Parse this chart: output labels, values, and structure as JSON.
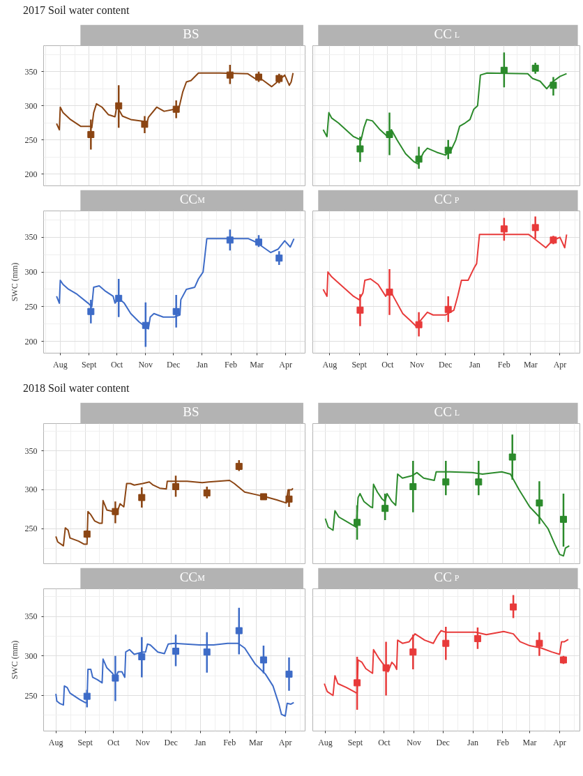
{
  "chart_data": [
    {
      "type": "line",
      "title": "BS",
      "annotations": [
        "2017 Soil water content"
      ],
      "tick_labels": "y",
      "grid": true,
      "xlim": [
        "2017-07-14",
        "2018-04-22"
      ],
      "ylim": [
        183,
        388
      ],
      "yticks": [
        200,
        250,
        300,
        350
      ],
      "xticks": [
        {
          "value": "2017-08-01",
          "label": null
        },
        {
          "value": "2017-09-01",
          "label": null
        },
        {
          "value": "2017-10-01",
          "label": null
        },
        {
          "value": "2017-11-01",
          "label": null
        },
        {
          "value": "2017-12-01",
          "label": null
        },
        {
          "value": "2018-01-01",
          "label": null
        },
        {
          "value": "2018-02-01",
          "label": null
        },
        {
          "value": "2018-03-01",
          "label": null
        },
        {
          "value": "2018-04-01",
          "label": null
        }
      ],
      "series": [
        {
          "color": "#8b4513",
          "x": [
            "2017-07-28",
            "2017-07-31",
            "2017-08-01",
            "2017-08-04",
            "2017-08-12",
            "2017-08-23",
            "2017-09-02",
            "2017-09-04",
            "2017-09-06",
            "2017-09-09",
            "2017-09-15",
            "2017-09-22",
            "2017-09-29",
            "2017-10-01",
            "2017-10-07",
            "2017-10-16",
            "2017-10-31",
            "2017-11-02",
            "2017-11-04",
            "2017-11-13",
            "2017-11-21",
            "2017-12-02",
            "2017-12-07",
            "2017-12-11",
            "2017-12-15",
            "2017-12-20",
            "2017-12-28",
            "2018-01-20",
            "2018-02-19",
            "2018-02-27",
            "2018-03-07",
            "2018-03-17",
            "2018-03-23",
            "2018-03-31",
            "2018-04-05",
            "2018-04-07",
            "2018-04-09"
          ],
          "values": [
            274,
            265,
            298,
            290,
            280,
            270,
            270,
            268,
            290,
            303,
            298,
            287,
            284,
            300,
            285,
            280,
            277,
            272,
            283,
            298,
            292,
            295,
            297,
            320,
            335,
            337,
            348,
            348,
            347,
            340,
            338,
            328,
            335,
            345,
            330,
            335,
            348
          ]
        },
        {
          "type": "scatter",
          "marker": "square",
          "color": "#8b4513",
          "x": [
            "2017-09-03",
            "2017-10-03",
            "2017-10-31",
            "2017-12-04",
            "2018-01-31",
            "2018-03-03",
            "2018-03-25"
          ],
          "values": [
            258,
            300,
            273,
            295,
            345,
            342,
            340
          ],
          "errors": [
            [
              236,
              280
            ],
            [
              268,
              330
            ],
            [
              260,
              285
            ],
            [
              282,
              308
            ],
            [
              332,
              360
            ],
            [
              335,
              350
            ],
            [
              333,
              347
            ]
          ]
        }
      ]
    },
    {
      "type": "line",
      "title": "CC$_{L}$",
      "tick_labels": false,
      "grid": true,
      "xlim": [
        "2017-07-14",
        "2018-04-22"
      ],
      "ylim": [
        183,
        388
      ],
      "yticks": [
        200,
        250,
        300,
        350
      ],
      "xticks": [
        {
          "value": "2017-08-01",
          "label": null
        },
        {
          "value": "2017-09-01",
          "label": null
        },
        {
          "value": "2017-10-01",
          "label": null
        },
        {
          "value": "2017-11-01",
          "label": null
        },
        {
          "value": "2017-12-01",
          "label": null
        },
        {
          "value": "2018-01-01",
          "label": null
        },
        {
          "value": "2018-02-01",
          "label": null
        },
        {
          "value": "2018-03-01",
          "label": null
        },
        {
          "value": "2018-04-01",
          "label": null
        }
      ],
      "series": [
        {
          "color": "#2b8a2b",
          "x": [
            "2017-07-25",
            "2017-07-29",
            "2017-07-31",
            "2017-08-03",
            "2017-08-10",
            "2017-08-26",
            "2017-09-03",
            "2017-09-06",
            "2017-09-09",
            "2017-09-15",
            "2017-09-23",
            "2017-10-01",
            "2017-10-05",
            "2017-10-11",
            "2017-10-20",
            "2017-10-29",
            "2017-11-02",
            "2017-11-08",
            "2017-11-12",
            "2017-11-22",
            "2017-12-01",
            "2017-12-07",
            "2017-12-12",
            "2017-12-16",
            "2017-12-22",
            "2017-12-27",
            "2017-12-31",
            "2018-01-04",
            "2018-01-07",
            "2018-01-14",
            "2018-02-26",
            "2018-03-03",
            "2018-03-11",
            "2018-03-18",
            "2018-03-24",
            "2018-04-01",
            "2018-04-08"
          ],
          "values": [
            265,
            255,
            290,
            282,
            275,
            255,
            250,
            268,
            280,
            278,
            265,
            255,
            265,
            250,
            230,
            218,
            215,
            232,
            238,
            232,
            228,
            235,
            250,
            270,
            275,
            280,
            295,
            300,
            345,
            348,
            347,
            340,
            336,
            325,
            335,
            343,
            347
          ]
        },
        {
          "type": "scatter",
          "marker": "square",
          "color": "#2b8a2b",
          "x": [
            "2017-09-02",
            "2017-10-03",
            "2017-11-03",
            "2017-12-04",
            "2018-02-01",
            "2018-03-06",
            "2018-03-25"
          ],
          "values": [
            237,
            258,
            222,
            235,
            352,
            355,
            330
          ],
          "errors": [
            [
              218,
              255
            ],
            [
              228,
              290
            ],
            [
              208,
              240
            ],
            [
              222,
              250
            ],
            [
              327,
              378
            ],
            [
              347,
              363
            ],
            [
              315,
              342
            ]
          ]
        }
      ]
    },
    {
      "type": "line",
      "title": "CC$_{M}$",
      "ylabel": "SWC (mm)",
      "grid": true,
      "xlim": [
        "2017-07-14",
        "2018-04-22"
      ],
      "ylim": [
        183,
        388
      ],
      "yticks": [
        200,
        250,
        300,
        350
      ],
      "xticks": [
        {
          "value": "2017-08-01",
          "label": "Aug"
        },
        {
          "value": "2017-09-01",
          "label": "Sept"
        },
        {
          "value": "2017-10-01",
          "label": "Oct"
        },
        {
          "value": "2017-11-01",
          "label": "Nov"
        },
        {
          "value": "2017-12-01",
          "label": "Dec"
        },
        {
          "value": "2018-01-01",
          "label": "Jan"
        },
        {
          "value": "2018-02-01",
          "label": "Feb"
        },
        {
          "value": "2018-03-01",
          "label": "Mar"
        },
        {
          "value": "2018-04-01",
          "label": "Apr"
        }
      ],
      "series": [
        {
          "color": "#3d6bc7",
          "x": [
            "2017-07-28",
            "2017-07-31",
            "2017-08-01",
            "2017-08-04",
            "2017-08-10",
            "2017-08-19",
            "2017-08-31",
            "2017-09-04",
            "2017-09-06",
            "2017-09-12",
            "2017-09-19",
            "2017-09-27",
            "2017-09-29",
            "2017-10-03",
            "2017-10-09",
            "2017-10-16",
            "2017-10-25",
            "2017-10-31",
            "2017-11-04",
            "2017-11-06",
            "2017-11-10",
            "2017-11-20",
            "2017-12-02",
            "2017-12-08",
            "2017-12-09",
            "2017-12-15",
            "2017-12-24",
            "2017-12-28",
            "2018-01-02",
            "2018-01-06",
            "2018-02-20",
            "2018-02-28",
            "2018-03-16",
            "2018-03-24",
            "2018-03-31",
            "2018-04-06",
            "2018-04-10"
          ],
          "values": [
            265,
            255,
            288,
            282,
            275,
            268,
            255,
            250,
            278,
            280,
            272,
            265,
            255,
            262,
            255,
            240,
            228,
            222,
            218,
            235,
            240,
            235,
            235,
            238,
            260,
            275,
            278,
            290,
            300,
            348,
            348,
            343,
            328,
            333,
            345,
            336,
            348
          ]
        },
        {
          "type": "scatter",
          "marker": "square",
          "color": "#3d6bc7",
          "x": [
            "2017-09-03",
            "2017-10-03",
            "2017-11-01",
            "2017-12-04",
            "2018-01-31",
            "2018-03-03",
            "2018-03-25"
          ],
          "values": [
            243,
            262,
            223,
            243,
            346,
            343,
            320
          ],
          "errors": [
            [
              226,
              260
            ],
            [
              235,
              290
            ],
            [
              192,
              256
            ],
            [
              220,
              267
            ],
            [
              331,
              361
            ],
            [
              336,
              353
            ],
            [
              310,
              330
            ]
          ]
        }
      ]
    },
    {
      "type": "line",
      "title": "CC$_{P}$",
      "tick_labels": "x",
      "grid": true,
      "xlim": [
        "2017-07-14",
        "2018-04-22"
      ],
      "ylim": [
        183,
        388
      ],
      "yticks": [
        200,
        250,
        300,
        350
      ],
      "xticks": [
        {
          "value": "2017-08-01",
          "label": "Aug"
        },
        {
          "value": "2017-09-01",
          "label": "Sept"
        },
        {
          "value": "2017-10-01",
          "label": "Oct"
        },
        {
          "value": "2017-11-01",
          "label": "Nov"
        },
        {
          "value": "2017-12-01",
          "label": "Dec"
        },
        {
          "value": "2018-01-01",
          "label": "Jan"
        },
        {
          "value": "2018-02-01",
          "label": "Feb"
        },
        {
          "value": "2018-03-01",
          "label": "Mar"
        },
        {
          "value": "2018-04-01",
          "label": "Apr"
        }
      ],
      "series": [
        {
          "color": "#e83a3a",
          "x": [
            "2017-07-25",
            "2017-07-29",
            "2017-07-30",
            "2017-08-03",
            "2017-08-12",
            "2017-08-26",
            "2017-09-01",
            "2017-09-05",
            "2017-09-07",
            "2017-09-13",
            "2017-09-21",
            "2017-09-29",
            "2017-10-03",
            "2017-10-09",
            "2017-10-17",
            "2017-10-25",
            "2017-10-31",
            "2017-11-06",
            "2017-11-12",
            "2017-11-18",
            "2017-12-01",
            "2017-12-10",
            "2017-12-14",
            "2017-12-18",
            "2017-12-25",
            "2017-12-31",
            "2018-01-03",
            "2018-01-06",
            "2018-02-27",
            "2018-03-03",
            "2018-03-17",
            "2018-03-24",
            "2018-04-01",
            "2018-04-06",
            "2018-04-08"
          ],
          "values": [
            275,
            265,
            300,
            293,
            282,
            265,
            260,
            270,
            288,
            290,
            282,
            265,
            275,
            260,
            240,
            230,
            222,
            232,
            242,
            238,
            238,
            245,
            265,
            288,
            288,
            305,
            312,
            354,
            354,
            350,
            335,
            345,
            350,
            335,
            354
          ]
        },
        {
          "type": "scatter",
          "marker": "square",
          "color": "#e83a3a",
          "x": [
            "2017-09-02",
            "2017-10-03",
            "2017-11-03",
            "2017-12-04",
            "2018-02-01",
            "2018-03-06",
            "2018-03-25"
          ],
          "values": [
            245,
            271,
            224,
            246,
            362,
            364,
            346
          ],
          "errors": [
            [
              222,
              268
            ],
            [
              238,
              304
            ],
            [
              207,
              242
            ],
            [
              228,
              265
            ],
            [
              345,
              378
            ],
            [
              348,
              380
            ],
            [
              340,
              352
            ]
          ]
        }
      ]
    },
    {
      "type": "line",
      "title": "BS",
      "annotations": [
        "2018 Soil water content"
      ],
      "tick_labels": "y",
      "grid": true,
      "xlim": [
        "2018-07-19",
        "2019-04-22"
      ],
      "ylim": [
        205,
        385
      ],
      "yticks": [
        250,
        300,
        350
      ],
      "xticks": [
        {
          "value": "2018-08-01",
          "label": null
        },
        {
          "value": "2018-09-01",
          "label": null
        },
        {
          "value": "2018-10-01",
          "label": null
        },
        {
          "value": "2018-11-01",
          "label": null
        },
        {
          "value": "2018-12-01",
          "label": null
        },
        {
          "value": "2019-01-01",
          "label": null
        },
        {
          "value": "2019-02-01",
          "label": null
        },
        {
          "value": "2019-03-01",
          "label": null
        },
        {
          "value": "2019-04-01",
          "label": null
        }
      ],
      "series": [
        {
          "color": "#8b4513",
          "x": [
            "2018-08-01",
            "2018-08-03",
            "2018-08-09",
            "2018-08-11",
            "2018-08-14",
            "2018-08-16",
            "2018-08-25",
            "2018-08-31",
            "2018-09-03",
            "2018-09-04",
            "2018-09-07",
            "2018-09-11",
            "2018-09-16",
            "2018-09-19",
            "2018-09-20",
            "2018-09-24",
            "2018-10-01",
            "2018-10-04",
            "2018-10-08",
            "2018-10-12",
            "2018-10-15",
            "2018-10-19",
            "2018-10-23",
            "2018-11-01",
            "2018-11-08",
            "2018-11-12",
            "2018-11-19",
            "2018-11-26",
            "2018-11-27",
            "2018-12-04",
            "2018-12-18",
            "2019-01-03",
            "2019-01-10",
            "2019-02-01",
            "2019-02-06",
            "2019-02-17",
            "2019-02-28",
            "2019-03-11",
            "2019-03-23",
            "2019-04-02",
            "2019-04-04",
            "2019-04-08",
            "2019-04-09"
          ],
          "values": [
            240,
            233,
            228,
            251,
            248,
            238,
            234,
            230,
            230,
            272,
            268,
            260,
            257,
            257,
            286,
            274,
            272,
            268,
            282,
            278,
            308,
            308,
            306,
            308,
            310,
            306,
            302,
            301,
            311,
            311,
            311,
            309,
            310,
            312,
            308,
            297,
            294,
            291,
            287,
            283,
            300,
            300,
            302
          ]
        },
        {
          "type": "scatter",
          "marker": "square",
          "color": "#8b4513",
          "x": [
            "2018-09-03",
            "2018-10-03",
            "2018-10-31",
            "2018-12-06",
            "2019-01-08",
            "2019-02-11",
            "2019-03-09",
            "2019-04-05"
          ],
          "values": [
            243,
            272,
            290,
            304,
            296,
            330,
            291,
            288
          ],
          "errors": [
            [
              238,
              248
            ],
            [
              257,
              285
            ],
            [
              277,
              303
            ],
            [
              291,
              318
            ],
            [
              289,
              304
            ],
            [
              324,
              338
            ],
            [
              289,
              294
            ],
            [
              278,
              300
            ]
          ]
        }
      ]
    },
    {
      "type": "line",
      "title": "CC$_{L}$",
      "tick_labels": false,
      "grid": true,
      "xlim": [
        "2018-07-19",
        "2019-04-22"
      ],
      "ylim": [
        205,
        385
      ],
      "yticks": [
        250,
        300,
        350
      ],
      "xticks": [
        {
          "value": "2018-08-01",
          "label": null
        },
        {
          "value": "2018-09-01",
          "label": null
        },
        {
          "value": "2018-10-01",
          "label": null
        },
        {
          "value": "2018-11-01",
          "label": null
        },
        {
          "value": "2018-12-01",
          "label": null
        },
        {
          "value": "2019-01-01",
          "label": null
        },
        {
          "value": "2019-02-01",
          "label": null
        },
        {
          "value": "2019-03-01",
          "label": null
        },
        {
          "value": "2019-04-01",
          "label": null
        }
      ],
      "series": [
        {
          "color": "#2b8a2b",
          "x": [
            "2018-08-01",
            "2018-08-04",
            "2018-08-09",
            "2018-08-11",
            "2018-08-15",
            "2018-08-22",
            "2018-09-02",
            "2018-09-04",
            "2018-09-06",
            "2018-09-10",
            "2018-09-17",
            "2018-09-19",
            "2018-09-20",
            "2018-09-24",
            "2018-09-29",
            "2018-10-02",
            "2018-10-04",
            "2018-10-09",
            "2018-10-13",
            "2018-10-15",
            "2018-10-20",
            "2018-10-30",
            "2018-11-04",
            "2018-11-11",
            "2018-11-22",
            "2018-11-24",
            "2018-12-08",
            "2018-12-31",
            "2019-01-11",
            "2019-01-31",
            "2019-02-09",
            "2019-02-18",
            "2019-03-01",
            "2019-03-11",
            "2019-03-20",
            "2019-03-27",
            "2019-04-01",
            "2019-04-05",
            "2019-04-07",
            "2019-04-11"
          ],
          "values": [
            263,
            252,
            248,
            273,
            265,
            260,
            252,
            290,
            295,
            285,
            278,
            277,
            307,
            297,
            288,
            285,
            295,
            285,
            280,
            320,
            315,
            318,
            322,
            315,
            312,
            323,
            323,
            322,
            320,
            323,
            320,
            300,
            278,
            265,
            250,
            230,
            217,
            215,
            225,
            228
          ]
        },
        {
          "type": "scatter",
          "marker": "square",
          "color": "#2b8a2b",
          "x": [
            "2018-09-03",
            "2018-10-02",
            "2018-10-31",
            "2018-12-04",
            "2019-01-07",
            "2019-02-11",
            "2019-03-11",
            "2019-04-05"
          ],
          "values": [
            258,
            276,
            304,
            310,
            310,
            342,
            283,
            262
          ],
          "errors": [
            [
              236,
              280
            ],
            [
              261,
              295
            ],
            [
              271,
              337
            ],
            [
              293,
              337
            ],
            [
              293,
              337
            ],
            [
              313,
              371
            ],
            [
              256,
              311
            ],
            [
              227,
              295
            ]
          ]
        }
      ]
    },
    {
      "type": "line",
      "title": "CC$_{M}$",
      "ylabel": "SWC (mm)",
      "grid": true,
      "xlim": [
        "2018-07-19",
        "2019-04-22"
      ],
      "ylim": [
        205,
        385
      ],
      "yticks": [
        250,
        300,
        350
      ],
      "xticks": [
        {
          "value": "2018-08-01",
          "label": "Aug"
        },
        {
          "value": "2018-09-01",
          "label": "Sept"
        },
        {
          "value": "2018-10-01",
          "label": "Oct"
        },
        {
          "value": "2018-11-01",
          "label": "Nov"
        },
        {
          "value": "2018-12-01",
          "label": "Dec"
        },
        {
          "value": "2019-01-01",
          "label": "Jan"
        },
        {
          "value": "2019-02-01",
          "label": "Feb"
        },
        {
          "value": "2019-03-01",
          "label": "Mar"
        },
        {
          "value": "2019-04-01",
          "label": "Apr"
        }
      ],
      "series": [
        {
          "color": "#3d6bc7",
          "x": [
            "2018-08-01",
            "2018-08-02",
            "2018-08-05",
            "2018-08-09",
            "2018-08-10",
            "2018-08-13",
            "2018-08-16",
            "2018-08-26",
            "2018-09-01",
            "2018-09-03",
            "2018-09-04",
            "2018-09-07",
            "2018-09-09",
            "2018-09-14",
            "2018-09-19",
            "2018-09-20",
            "2018-09-24",
            "2018-09-30",
            "2018-10-03",
            "2018-10-06",
            "2018-10-10",
            "2018-10-13",
            "2018-10-14",
            "2018-10-18",
            "2018-10-23",
            "2018-11-01",
            "2018-11-04",
            "2018-11-06",
            "2018-11-09",
            "2018-11-17",
            "2018-11-24",
            "2018-11-28",
            "2018-12-04",
            "2018-12-31",
            "2019-01-15",
            "2019-01-30",
            "2019-02-10",
            "2019-02-17",
            "2019-02-28",
            "2019-03-11",
            "2019-03-19",
            "2019-03-25",
            "2019-03-28",
            "2019-04-01",
            "2019-04-03",
            "2019-04-07",
            "2019-04-10"
          ],
          "values": [
            252,
            243,
            240,
            238,
            262,
            260,
            253,
            245,
            241,
            241,
            283,
            283,
            273,
            270,
            266,
            296,
            285,
            278,
            272,
            280,
            280,
            273,
            305,
            308,
            302,
            305,
            305,
            315,
            314,
            305,
            303,
            315,
            316,
            314,
            314,
            316,
            316,
            310,
            290,
            277,
            262,
            240,
            226,
            224,
            240,
            239,
            241
          ]
        },
        {
          "type": "scatter",
          "marker": "square",
          "color": "#3d6bc7",
          "x": [
            "2018-09-03",
            "2018-10-03",
            "2018-10-31",
            "2018-12-06",
            "2019-01-08",
            "2019-02-11",
            "2019-03-09",
            "2019-04-05"
          ],
          "values": [
            249,
            272,
            299,
            306,
            305,
            332,
            295,
            277
          ],
          "errors": [
            [
              235,
              257
            ],
            [
              243,
              300
            ],
            [
              273,
              324
            ],
            [
              287,
              327
            ],
            [
              279,
              330
            ],
            [
              302,
              361
            ],
            [
              278,
              313
            ],
            [
              256,
              298
            ]
          ]
        }
      ]
    },
    {
      "type": "line",
      "title": "CC$_{P}$",
      "tick_labels": "x",
      "grid": true,
      "xlim": [
        "2018-07-19",
        "2019-04-22"
      ],
      "ylim": [
        205,
        385
      ],
      "yticks": [
        250,
        300,
        350
      ],
      "xticks": [
        {
          "value": "2018-08-01",
          "label": "Aug"
        },
        {
          "value": "2018-09-01",
          "label": "Sept"
        },
        {
          "value": "2018-10-01",
          "label": "Oct"
        },
        {
          "value": "2018-11-01",
          "label": "Nov"
        },
        {
          "value": "2018-12-01",
          "label": "Dec"
        },
        {
          "value": "2019-01-01",
          "label": "Jan"
        },
        {
          "value": "2019-02-01",
          "label": "Feb"
        },
        {
          "value": "2019-03-01",
          "label": "Mar"
        },
        {
          "value": "2019-04-01",
          "label": "Apr"
        }
      ],
      "series": [
        {
          "color": "#e83a3a",
          "x": [
            "2018-07-31",
            "2018-08-03",
            "2018-08-09",
            "2018-08-11",
            "2018-08-14",
            "2018-08-23",
            "2018-09-01",
            "2018-09-03",
            "2018-09-04",
            "2018-09-08",
            "2018-09-12",
            "2018-09-19",
            "2018-09-20",
            "2018-09-25",
            "2018-10-01",
            "2018-10-05",
            "2018-10-09",
            "2018-10-12",
            "2018-10-14",
            "2018-10-15",
            "2018-10-20",
            "2018-10-27",
            "2018-11-02",
            "2018-11-12",
            "2018-11-21",
            "2018-11-25",
            "2018-11-29",
            "2018-12-04",
            "2018-12-19",
            "2019-01-04",
            "2019-01-15",
            "2019-02-02",
            "2019-02-12",
            "2019-02-19",
            "2019-03-01",
            "2019-03-13",
            "2019-03-24",
            "2019-04-01",
            "2019-04-03",
            "2019-04-06",
            "2019-04-10"
          ],
          "values": [
            265,
            255,
            250,
            275,
            265,
            260,
            254,
            253,
            295,
            292,
            284,
            278,
            308,
            298,
            288,
            280,
            292,
            288,
            283,
            320,
            316,
            318,
            328,
            320,
            316,
            325,
            332,
            330,
            330,
            330,
            327,
            331,
            328,
            318,
            313,
            310,
            305,
            302,
            318,
            318,
            321
          ]
        },
        {
          "type": "scatter",
          "marker": "square",
          "color": "#e83a3a",
          "x": [
            "2018-09-03",
            "2018-10-03",
            "2018-10-31",
            "2018-12-04",
            "2019-01-06",
            "2019-02-12",
            "2019-03-11",
            "2019-04-05"
          ],
          "values": [
            266,
            285,
            305,
            316,
            322,
            362,
            316,
            295
          ],
          "errors": [
            [
              232,
              299
            ],
            [
              250,
              318
            ],
            [
              283,
              327
            ],
            [
              295,
              337
            ],
            [
              309,
              336
            ],
            [
              348,
              377
            ],
            [
              300,
              330
            ],
            [
              290,
              300
            ]
          ]
        }
      ]
    }
  ]
}
